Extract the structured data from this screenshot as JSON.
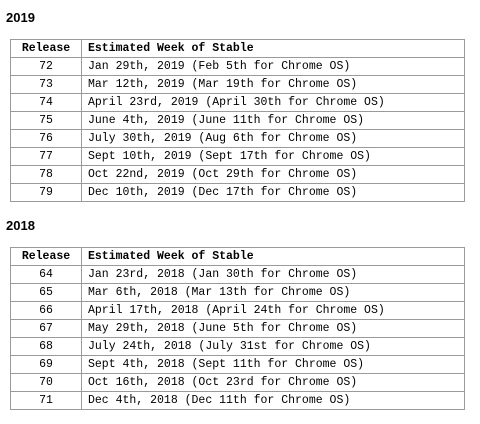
{
  "sections": [
    {
      "year": "2019",
      "headers": [
        "Release",
        "Estimated Week of Stable"
      ],
      "rows": [
        [
          "72",
          "Jan 29th, 2019 (Feb 5th for Chrome OS)"
        ],
        [
          "73",
          "Mar 12th, 2019 (Mar 19th for Chrome OS)"
        ],
        [
          "74",
          "April 23rd, 2019 (April 30th for Chrome OS)"
        ],
        [
          "75",
          "June 4th, 2019 (June 11th for Chrome OS)"
        ],
        [
          "76",
          "July 30th, 2019 (Aug 6th for Chrome OS)"
        ],
        [
          "77",
          "Sept 10th, 2019 (Sept 17th for Chrome OS)"
        ],
        [
          "78",
          "Oct 22nd, 2019 (Oct 29th for Chrome OS)"
        ],
        [
          "79",
          "Dec 10th, 2019 (Dec 17th for Chrome OS)"
        ]
      ]
    },
    {
      "year": "2018",
      "headers": [
        "Release",
        "Estimated Week of Stable"
      ],
      "rows": [
        [
          "64",
          "Jan 23rd, 2018 (Jan 30th for Chrome OS)"
        ],
        [
          "65",
          "Mar 6th, 2018 (Mar 13th for Chrome OS)"
        ],
        [
          "66",
          "April 17th, 2018 (April 24th for Chrome OS)"
        ],
        [
          "67",
          "May 29th, 2018 (June 5th for Chrome OS)"
        ],
        [
          "68",
          "July 24th, 2018 (July 31st for Chrome OS)"
        ],
        [
          "69",
          "Sept 4th, 2018 (Sept 11th for Chrome OS)"
        ],
        [
          "70",
          "Oct 16th, 2018 (Oct 23rd for Chrome OS)"
        ],
        [
          "71",
          "Dec 4th, 2018 (Dec 11th for Chrome OS)"
        ]
      ]
    }
  ]
}
